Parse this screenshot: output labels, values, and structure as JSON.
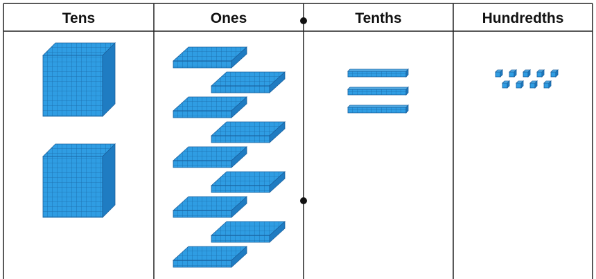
{
  "columns": [
    {
      "label": "Tens",
      "blocks": 2
    },
    {
      "label": "Ones",
      "blocks": 9
    },
    {
      "label": "Tenths",
      "blocks": 3
    },
    {
      "label": "Hundredths",
      "blocks": 9
    }
  ]
}
